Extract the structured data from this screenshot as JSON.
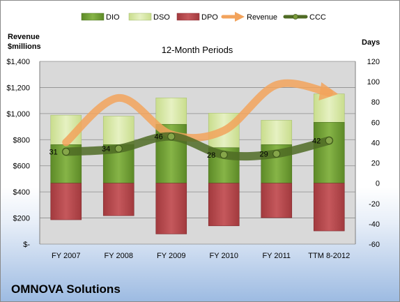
{
  "company": "OMNOVA Solutions",
  "chart_data": {
    "type": "bar",
    "title": "12-Month Periods",
    "categories": [
      "FY 2007",
      "FY 2008",
      "FY 2009",
      "FY 2010",
      "FY 2011",
      "TTM 8-2012"
    ],
    "left_axis": {
      "title_line1": "Revenue",
      "title_line2": "$millions",
      "ticks": [
        "$1,400",
        "$1,200",
        "$1,000",
        "$800",
        "$600",
        "$400",
        "$200",
        "$-"
      ],
      "range": [
        0,
        1400
      ]
    },
    "right_axis": {
      "title": "Days",
      "ticks": [
        "120",
        "100",
        "80",
        "60",
        "40",
        "20",
        "0",
        "-20",
        "-40",
        "-60"
      ],
      "range": [
        -60,
        120
      ]
    },
    "legend": [
      "DIO",
      "DSO",
      "DPO",
      "Revenue",
      "CCC"
    ],
    "legend_position": "top",
    "series": {
      "DIO": [
        38,
        38,
        58,
        35,
        38,
        60
      ],
      "DSO": [
        67,
        66,
        84,
        69,
        62,
        88
      ],
      "DPO": [
        -36,
        -32,
        -50,
        -42,
        -34,
        -47
      ],
      "Revenue": [
        780,
        1120,
        840,
        870,
        1220,
        1160
      ],
      "CCC": [
        31,
        34,
        46,
        28,
        29,
        42
      ]
    },
    "ccc_labels": [
      "31",
      "34",
      "46",
      "28",
      "29",
      "42"
    ],
    "colors": {
      "DIO": "#6e9a32",
      "DSO": "#d6e6a7",
      "DPO": "#b6454a",
      "Revenue": "#f2a35c",
      "CCC": "#4f6b24",
      "plot_bg": "#d9d9d9",
      "grid": "#8c8c8c"
    }
  }
}
